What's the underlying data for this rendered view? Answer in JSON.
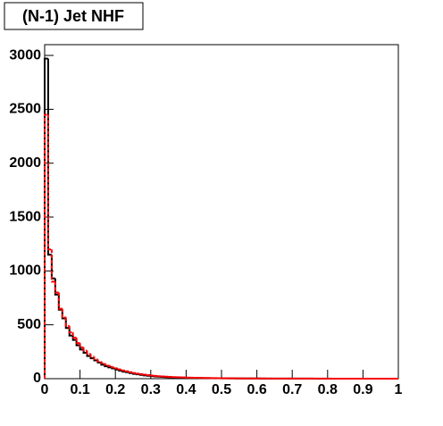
{
  "chart_data": {
    "type": "histogram",
    "title": "(N-1) Jet NHF",
    "bins": [
      0,
      0.01,
      0.02,
      0.03,
      0.04,
      0.05,
      0.06,
      0.07,
      0.08,
      0.09,
      0.1,
      0.11,
      0.12,
      0.13,
      0.14,
      0.15,
      0.16,
      0.17,
      0.18,
      0.19,
      0.2,
      0.21,
      0.22,
      0.23,
      0.24,
      0.25,
      0.26,
      0.27,
      0.28,
      0.29,
      0.3,
      0.31,
      0.32,
      0.33,
      0.34,
      0.35,
      0.36,
      0.37,
      0.38,
      0.39,
      0.4,
      0.41,
      0.42,
      0.43,
      0.44,
      0.45,
      0.46,
      0.47,
      0.48,
      0.49,
      0.5,
      0.51,
      0.52,
      0.53,
      0.54,
      0.55,
      0.56,
      0.57,
      0.58,
      0.59,
      0.6,
      0.61,
      0.62,
      0.63,
      0.64,
      0.65,
      0.66,
      0.67,
      0.68,
      0.69,
      0.7,
      0.71,
      0.72,
      0.73,
      0.74,
      0.75,
      0.76,
      0.77,
      0.78,
      0.79,
      0.8,
      0.81,
      0.82,
      0.83,
      0.84,
      0.85,
      0.86,
      0.87,
      0.88,
      0.89,
      0.9,
      0.91,
      0.92,
      0.93,
      0.94,
      0.95,
      0.96,
      0.97,
      0.98,
      0.99,
      1
    ],
    "series": [
      {
        "color": "#000000",
        "dashed": false,
        "values": [
          2970,
          1150,
          930,
          780,
          640,
          560,
          470,
          400,
          360,
          310,
          270,
          240,
          210,
          190,
          170,
          150,
          130,
          115,
          105,
          95,
          85,
          75,
          65,
          60,
          52,
          45,
          40,
          35,
          30,
          27,
          24,
          21,
          19,
          17,
          15,
          13,
          12,
          11,
          10,
          9,
          8,
          7,
          7,
          6,
          6,
          5,
          5,
          4,
          4,
          4,
          3,
          3,
          3,
          3,
          2,
          2,
          2,
          2,
          2,
          2,
          2,
          1,
          1,
          1,
          1,
          1,
          1,
          1,
          1,
          1,
          1,
          1,
          1,
          1,
          1,
          1,
          0,
          0,
          0,
          0,
          0,
          0,
          0,
          0,
          0,
          0,
          0,
          0,
          0,
          0,
          0,
          0,
          0,
          0,
          0,
          0,
          0,
          0,
          0,
          0
        ]
      },
      {
        "color": "#ff0000",
        "dashed": true,
        "values": [
          2450,
          1200,
          900,
          800,
          650,
          570,
          490,
          430,
          380,
          330,
          290,
          260,
          230,
          205,
          180,
          160,
          145,
          130,
          118,
          105,
          95,
          85,
          76,
          68,
          60,
          53,
          47,
          42,
          37,
          33,
          29,
          26,
          23,
          21,
          19,
          17,
          15,
          13,
          12,
          11,
          10,
          9,
          8,
          8,
          7,
          6,
          6,
          5,
          5,
          4,
          4,
          4,
          3,
          3,
          3,
          3,
          2,
          2,
          2,
          2,
          2,
          2,
          2,
          1,
          1,
          1,
          1,
          1,
          1,
          1,
          1,
          1,
          1,
          1,
          1,
          1,
          1,
          1,
          1,
          1,
          1,
          0,
          0,
          0,
          0,
          0,
          0,
          0,
          0,
          0,
          0,
          0,
          0,
          0,
          0,
          0,
          0,
          0,
          0,
          0
        ]
      }
    ],
    "xlim": [
      0,
      1
    ],
    "xticks": [
      0,
      0.1,
      0.2,
      0.3,
      0.4,
      0.5,
      0.6,
      0.7,
      0.8,
      0.9,
      1
    ],
    "ylim": [
      0,
      3100
    ],
    "yticks": [
      0,
      500,
      1000,
      1500,
      2000,
      2500,
      3000
    ]
  }
}
